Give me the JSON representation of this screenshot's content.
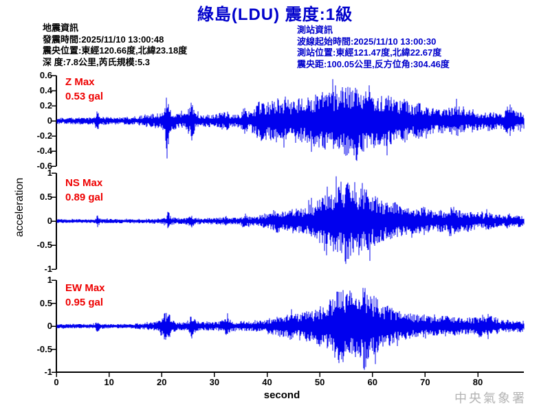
{
  "title": "綠島(LDU) 震度:1級",
  "info_left": {
    "lines": [
      "地震資訊",
      "發震時間:2025/11/10 13:00:48",
      "震央位置:東經120.66度,北緯23.18度",
      "深 度:7.8公里,芮氏規模:5.3"
    ]
  },
  "info_right": {
    "lines": [
      "測站資訊",
      "波線起始時間:2025/11/10 13:00:30",
      "測站位置:東經121.47度,北緯22.67度",
      "震央距:100.05公里,反方位角:304.46度"
    ]
  },
  "watermark": "中央氣象署",
  "colors": {
    "title_blue": "#0000cc",
    "trace_blue": "#0000ee",
    "label_red": "#ee0000",
    "axis_black": "#000000",
    "watermark_gray": "#b3b3b3"
  },
  "chart_data": {
    "type": "line",
    "subtype": "seismogram",
    "xlabel": "second",
    "ylabel": "acceleration",
    "unit": "gal",
    "x_range": [
      0,
      88.8
    ],
    "x_ticks": [
      0,
      10,
      20,
      30,
      40,
      50,
      60,
      70,
      80
    ],
    "series": [
      {
        "name": "Z",
        "label": "Z Max",
        "max_label": "0.53 gal",
        "max_gal": 0.53,
        "peak_t": 57,
        "ylim": [
          -0.6,
          0.6
        ],
        "y_ticks": [
          0.6,
          0.4,
          0.2,
          0,
          -0.2,
          -0.4,
          -0.6
        ],
        "envelope": [
          [
            0,
            0.045
          ],
          [
            7.2,
            0.05
          ],
          [
            7.8,
            0.15
          ],
          [
            8.4,
            0.06
          ],
          [
            10,
            0.05
          ],
          [
            15,
            0.05
          ],
          [
            17,
            0.09
          ],
          [
            19,
            0.1
          ],
          [
            20.4,
            0.13
          ],
          [
            21,
            0.44
          ],
          [
            21.6,
            0.18
          ],
          [
            22.2,
            0.12
          ],
          [
            24.5,
            0.09
          ],
          [
            25.7,
            0.28
          ],
          [
            26.4,
            0.1
          ],
          [
            28,
            0.08
          ],
          [
            30,
            0.09
          ],
          [
            32.4,
            0.13
          ],
          [
            33,
            0.09
          ],
          [
            35,
            0.09
          ],
          [
            35.7,
            0.22
          ],
          [
            36.4,
            0.12
          ],
          [
            37.5,
            0.18
          ],
          [
            38.5,
            0.28
          ],
          [
            40,
            0.25
          ],
          [
            42,
            0.3
          ],
          [
            44,
            0.28
          ],
          [
            46,
            0.3
          ],
          [
            48,
            0.32
          ],
          [
            50,
            0.38
          ],
          [
            52,
            0.45
          ],
          [
            53,
            0.38
          ],
          [
            54,
            0.45
          ],
          [
            55,
            0.5
          ],
          [
            56,
            0.42
          ],
          [
            57,
            0.53
          ],
          [
            58,
            0.48
          ],
          [
            59,
            0.4
          ],
          [
            60,
            0.45
          ],
          [
            61,
            0.38
          ],
          [
            62,
            0.33
          ],
          [
            63,
            0.35
          ],
          [
            64,
            0.3
          ],
          [
            65,
            0.28
          ],
          [
            66,
            0.3
          ],
          [
            67,
            0.25
          ],
          [
            68,
            0.22
          ],
          [
            69,
            0.25
          ],
          [
            70,
            0.2
          ],
          [
            71,
            0.18
          ],
          [
            72,
            0.16
          ],
          [
            73,
            0.18
          ],
          [
            74,
            0.15
          ],
          [
            75,
            0.2
          ],
          [
            76,
            0.22
          ],
          [
            77,
            0.16
          ],
          [
            78,
            0.14
          ],
          [
            79,
            0.16
          ],
          [
            80,
            0.13
          ],
          [
            81,
            0.12
          ],
          [
            82,
            0.14
          ],
          [
            83,
            0.12
          ],
          [
            84,
            0.11
          ],
          [
            85,
            0.12
          ],
          [
            86,
            0.24
          ],
          [
            86.6,
            0.17
          ],
          [
            87,
            0.13
          ],
          [
            88,
            0.12
          ],
          [
            88.8,
            0.11
          ]
        ]
      },
      {
        "name": "NS",
        "label": "NS Max",
        "max_label": "0.89 gal",
        "max_gal": 0.89,
        "peak_t": 55,
        "ylim": [
          -1,
          1
        ],
        "y_ticks": [
          1,
          0.5,
          0,
          -0.5,
          -1
        ],
        "envelope": [
          [
            0,
            0.04
          ],
          [
            7.2,
            0.04
          ],
          [
            7.8,
            0.13
          ],
          [
            8.4,
            0.05
          ],
          [
            10,
            0.045
          ],
          [
            15,
            0.045
          ],
          [
            20,
            0.06
          ],
          [
            20.8,
            0.08
          ],
          [
            21.2,
            0.22
          ],
          [
            21.8,
            0.08
          ],
          [
            24,
            0.06
          ],
          [
            25.7,
            0.14
          ],
          [
            26.4,
            0.07
          ],
          [
            28,
            0.06
          ],
          [
            31.5,
            0.08
          ],
          [
            32.4,
            0.1
          ],
          [
            33,
            0.07
          ],
          [
            35,
            0.08
          ],
          [
            35.7,
            0.18
          ],
          [
            36.4,
            0.1
          ],
          [
            38,
            0.1
          ],
          [
            39,
            0.14
          ],
          [
            40,
            0.18
          ],
          [
            41,
            0.22
          ],
          [
            42,
            0.25
          ],
          [
            43,
            0.22
          ],
          [
            44,
            0.28
          ],
          [
            45,
            0.25
          ],
          [
            46,
            0.3
          ],
          [
            47,
            0.28
          ],
          [
            48,
            0.35
          ],
          [
            49,
            0.4
          ],
          [
            50,
            0.5
          ],
          [
            51,
            0.55
          ],
          [
            52,
            0.65
          ],
          [
            53,
            0.8
          ],
          [
            54,
            0.75
          ],
          [
            55,
            0.89
          ],
          [
            56,
            0.75
          ],
          [
            57,
            0.8
          ],
          [
            58,
            0.65
          ],
          [
            59,
            0.7
          ],
          [
            60,
            0.55
          ],
          [
            61,
            0.5
          ],
          [
            62,
            0.42
          ],
          [
            63,
            0.38
          ],
          [
            64,
            0.45
          ],
          [
            65,
            0.35
          ],
          [
            66,
            0.3
          ],
          [
            67,
            0.28
          ],
          [
            68,
            0.25
          ],
          [
            69,
            0.28
          ],
          [
            70,
            0.32
          ],
          [
            71,
            0.25
          ],
          [
            72,
            0.2
          ],
          [
            73,
            0.25
          ],
          [
            74,
            0.2
          ],
          [
            75,
            0.3
          ],
          [
            76,
            0.26
          ],
          [
            77,
            0.2
          ],
          [
            78,
            0.24
          ],
          [
            79,
            0.2
          ],
          [
            80,
            0.17
          ],
          [
            81,
            0.15
          ],
          [
            82,
            0.2
          ],
          [
            83,
            0.15
          ],
          [
            84,
            0.14
          ],
          [
            85,
            0.12
          ],
          [
            86,
            0.16
          ],
          [
            87,
            0.11
          ],
          [
            88,
            0.13
          ],
          [
            88.8,
            0.1
          ]
        ]
      },
      {
        "name": "EW",
        "label": "EW Max",
        "max_label": "0.95 gal",
        "max_gal": 0.95,
        "peak_t": 58.5,
        "ylim": [
          -1,
          1
        ],
        "y_ticks": [
          1,
          0.5,
          0,
          -0.5,
          -1
        ],
        "envelope": [
          [
            0,
            0.05
          ],
          [
            7.2,
            0.05
          ],
          [
            7.8,
            0.13
          ],
          [
            8.4,
            0.06
          ],
          [
            10,
            0.05
          ],
          [
            14,
            0.05
          ],
          [
            16,
            0.07
          ],
          [
            18,
            0.09
          ],
          [
            19.5,
            0.12
          ],
          [
            20.5,
            0.3
          ],
          [
            21.4,
            0.28
          ],
          [
            22,
            0.13
          ],
          [
            23,
            0.1
          ],
          [
            25,
            0.09
          ],
          [
            25.7,
            0.27
          ],
          [
            26.5,
            0.12
          ],
          [
            27.5,
            0.09
          ],
          [
            29,
            0.1
          ],
          [
            30.5,
            0.09
          ],
          [
            32.4,
            0.23
          ],
          [
            33.2,
            0.12
          ],
          [
            34,
            0.09
          ],
          [
            35.5,
            0.12
          ],
          [
            36.5,
            0.1
          ],
          [
            38,
            0.12
          ],
          [
            39,
            0.14
          ],
          [
            40,
            0.16
          ],
          [
            41,
            0.2
          ],
          [
            42,
            0.22
          ],
          [
            43,
            0.25
          ],
          [
            44,
            0.28
          ],
          [
            45,
            0.32
          ],
          [
            46,
            0.26
          ],
          [
            47,
            0.32
          ],
          [
            48,
            0.38
          ],
          [
            49,
            0.32
          ],
          [
            50,
            0.5
          ],
          [
            51,
            0.45
          ],
          [
            52,
            0.6
          ],
          [
            53,
            0.8
          ],
          [
            54,
            0.85
          ],
          [
            55,
            0.7
          ],
          [
            56,
            0.8
          ],
          [
            57,
            0.72
          ],
          [
            58.5,
            0.95
          ],
          [
            59.2,
            0.8
          ],
          [
            60,
            0.7
          ],
          [
            61,
            0.6
          ],
          [
            62,
            0.5
          ],
          [
            63,
            0.45
          ],
          [
            64,
            0.4
          ],
          [
            65,
            0.36
          ],
          [
            66,
            0.3
          ],
          [
            67,
            0.28
          ],
          [
            68,
            0.26
          ],
          [
            69,
            0.25
          ],
          [
            70,
            0.26
          ],
          [
            71,
            0.22
          ],
          [
            72,
            0.2
          ],
          [
            73,
            0.22
          ],
          [
            74,
            0.24
          ],
          [
            75,
            0.2
          ],
          [
            76,
            0.22
          ],
          [
            77,
            0.18
          ],
          [
            78,
            0.2
          ],
          [
            79,
            0.18
          ],
          [
            80,
            0.22
          ],
          [
            81,
            0.26
          ],
          [
            82,
            0.3
          ],
          [
            82.6,
            0.25
          ],
          [
            83.5,
            0.2
          ],
          [
            84,
            0.15
          ],
          [
            85,
            0.13
          ],
          [
            86,
            0.15
          ],
          [
            87,
            0.12
          ],
          [
            88,
            0.14
          ],
          [
            88.8,
            0.11
          ]
        ]
      }
    ]
  }
}
